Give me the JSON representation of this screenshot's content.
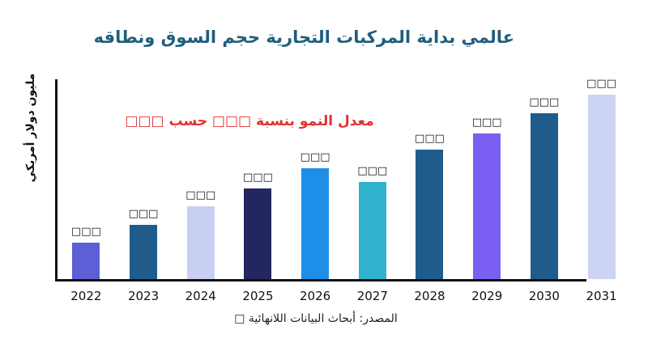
{
  "title": "عالمي بداية المركبات التجارية حجم السوق ونطاقه",
  "ylabel": "مليون دولار أمريكي",
  "annotation": {
    "text": "معدل النمو بنسبة □□□ حسب □□□",
    "color": "#e03131"
  },
  "source": "المصدر: أبحاث البيانات اللانهائية □",
  "colors": {
    "title": "#215e7e",
    "annotation": "#e03131",
    "axis": "#111111"
  },
  "chart_data": {
    "type": "bar",
    "title": "عالمي بداية المركبات التجارية حجم السوق ونطاقه",
    "xlabel": "",
    "ylabel": "مليون دولار أمريكي",
    "categories": [
      "2022",
      "2023",
      "2024",
      "2025",
      "2026",
      "2027",
      "2028",
      "2029",
      "2030",
      "2031"
    ],
    "values": [
      45,
      67,
      90,
      112,
      137,
      120,
      160,
      180,
      205,
      228
    ],
    "value_labels": [
      "□□□",
      "□□□",
      "□□□",
      "□□□",
      "□□□",
      "□□□",
      "□□□",
      "□□□",
      "□□□",
      "□□□"
    ],
    "bar_colors": [
      "#5c5fd6",
      "#1f5c8b",
      "#c9cff2",
      "#23265f",
      "#1e8fe8",
      "#30b1ce",
      "#1f5c8b",
      "#7a5ff2",
      "#1f5c8b",
      "#ccd3f3"
    ],
    "ylim": [
      0,
      250
    ],
    "grid": false,
    "legend": "none"
  }
}
